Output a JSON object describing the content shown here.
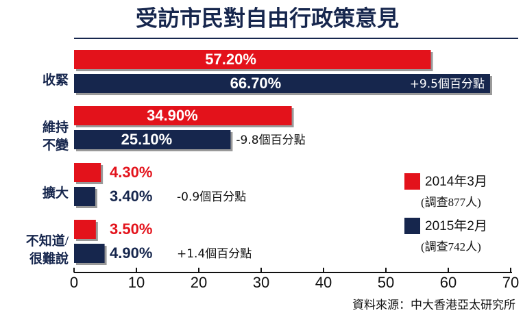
{
  "chart_data": {
    "type": "hbar",
    "title": "受訪市民對自由行政策意見",
    "categories": [
      [
        "收緊"
      ],
      [
        "維持",
        "不變"
      ],
      [
        "擴大"
      ],
      [
        "不知道/",
        "很難說"
      ]
    ],
    "series": [
      {
        "name": "2014年3月",
        "note": "(調查877人)",
        "color": "#e3121b",
        "values": [
          57.2,
          34.9,
          4.3,
          3.5
        ],
        "value_labels": [
          "57.20%",
          "34.90%",
          "4.30%",
          "3.50%"
        ]
      },
      {
        "name": "2015年2月",
        "note": "(調查742人)",
        "color": "#16264d",
        "values": [
          66.7,
          25.1,
          3.4,
          4.9
        ],
        "value_labels": [
          "66.70%",
          "25.10%",
          "3.40%",
          "4.90%"
        ]
      }
    ],
    "annotations": [
      "+9.5個百分點",
      "-9.8個百分點",
      "-0.9個百分點",
      "+1.4個百分點"
    ],
    "xlim": [
      0,
      70
    ],
    "xticks": [
      0,
      10,
      20,
      30,
      40,
      50,
      60,
      70
    ],
    "source": "資料來源：中大香港亞太研究所"
  }
}
